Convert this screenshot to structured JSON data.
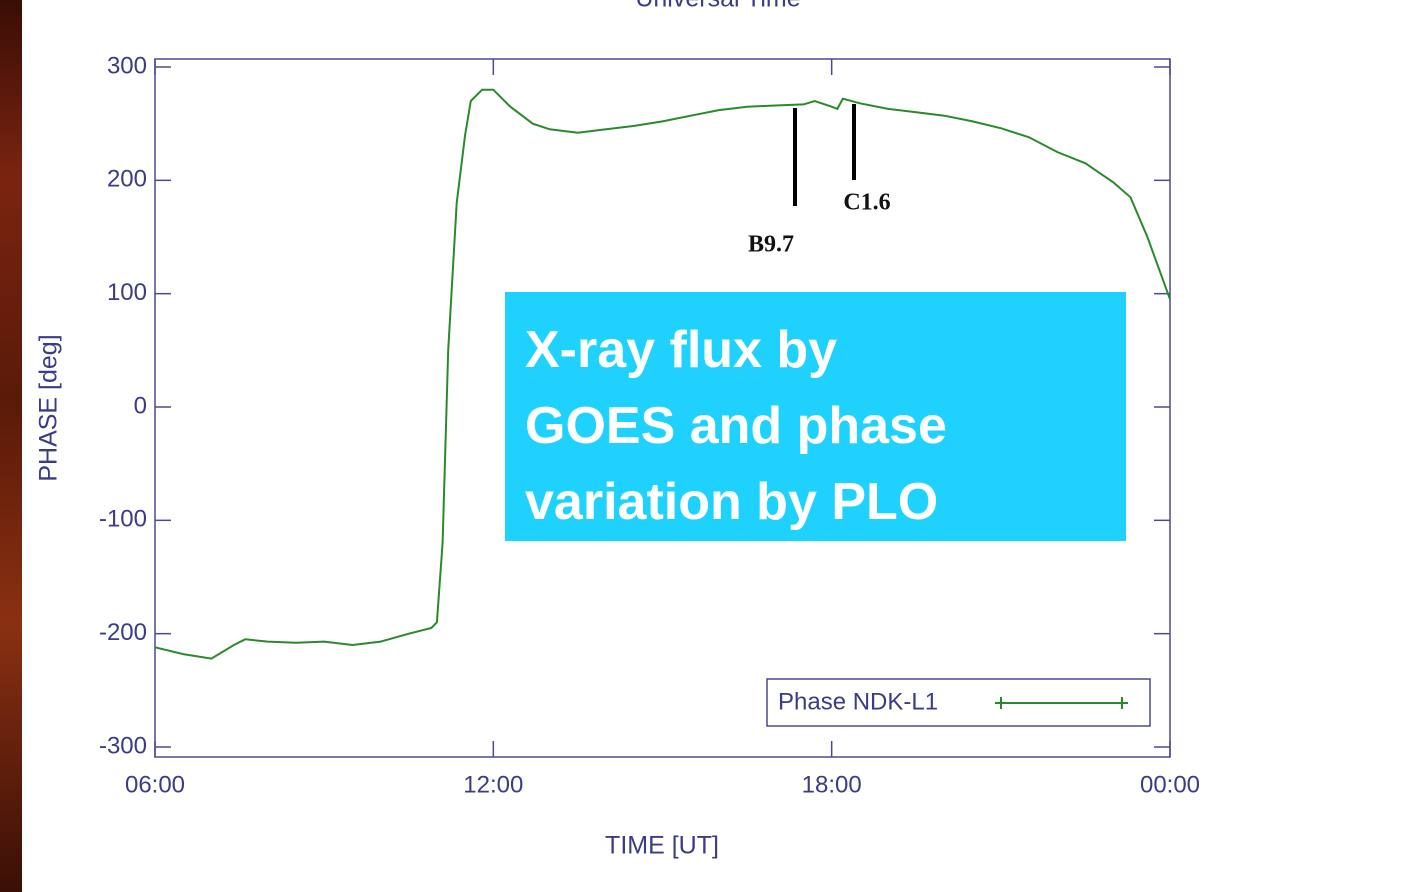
{
  "chart_data": {
    "type": "line",
    "top_label": "Universal Time",
    "xlabel": "TIME [UT]",
    "ylabel": "PHASE [deg]",
    "xlim": [
      6,
      24
    ],
    "xticks": [
      {
        "value": 6,
        "label": "06:00"
      },
      {
        "value": 12,
        "label": "12:00"
      },
      {
        "value": 18,
        "label": "18:00"
      },
      {
        "value": 24,
        "label": "00:00"
      }
    ],
    "ylim": [
      -300,
      300
    ],
    "yticks": [
      -300,
      -200,
      -100,
      0,
      100,
      200,
      300
    ],
    "annotations": [
      "B9.7",
      "C1.6"
    ],
    "text_box": [
      "X-ray flux by",
      "GOES and phase",
      "variation by PLO"
    ],
    "legend": "lower right",
    "series": [
      {
        "name": "Phase NDK-L1",
        "color": "#2a8a2a",
        "x": [
          6.0,
          6.5,
          7.0,
          7.4,
          7.6,
          8.0,
          8.5,
          9.0,
          9.5,
          10.0,
          10.5,
          10.9,
          11.0,
          11.1,
          11.2,
          11.35,
          11.5,
          11.6,
          11.8,
          12.0,
          12.3,
          12.7,
          13.0,
          13.5,
          14.0,
          14.5,
          15.0,
          15.5,
          16.0,
          16.5,
          17.0,
          17.5,
          17.7,
          18.0,
          18.1,
          18.2,
          18.5,
          19.0,
          19.5,
          20.0,
          20.5,
          21.0,
          21.5,
          22.0,
          22.5,
          23.0,
          23.3,
          23.6,
          24.0
        ],
        "values": [
          -212,
          -218,
          -222,
          -210,
          -205,
          -207,
          -208,
          -207,
          -210,
          -207,
          -200,
          -195,
          -190,
          -120,
          50,
          180,
          240,
          270,
          280,
          280,
          265,
          250,
          245,
          242,
          245,
          248,
          252,
          257,
          262,
          265,
          266,
          267,
          270,
          265,
          263,
          272,
          268,
          263,
          260,
          257,
          252,
          246,
          238,
          225,
          215,
          198,
          185,
          150,
          95
        ]
      }
    ]
  }
}
